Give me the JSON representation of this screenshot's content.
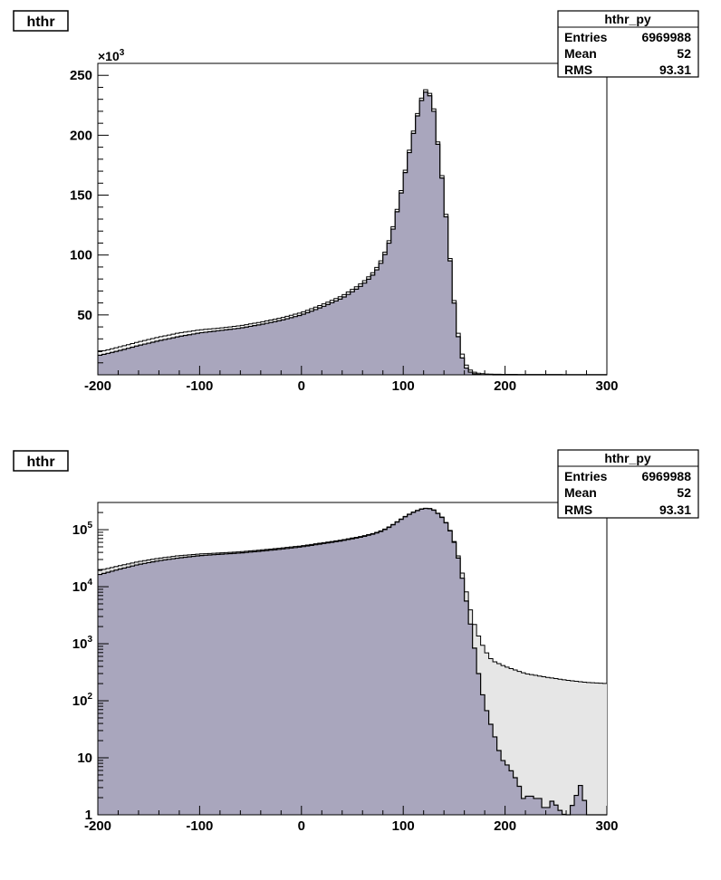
{
  "colors": {
    "main_fill": "#a9a6bd",
    "overlay_fill": "#e6e6e6",
    "line": "#000000",
    "background": "#ffffff"
  },
  "chart_data": [
    {
      "type": "histogram",
      "title": "hthr",
      "x_range": [
        -200,
        300
      ],
      "x_ticks": [
        "-200",
        "-100",
        "0",
        "100",
        "200",
        "300"
      ],
      "y_scale": "linear",
      "y_range": [
        0,
        260000
      ],
      "y_multiplier_label": "×10",
      "y_multiplier_exp": "3",
      "y_ticks": [
        "50",
        "100",
        "150",
        "200",
        "250"
      ],
      "stats": {
        "name": "hthr_py",
        "rows": [
          {
            "label": "Entries",
            "value": "6969988"
          },
          {
            "label": "Mean",
            "value": "52"
          },
          {
            "label": "RMS",
            "value": "93.31"
          }
        ]
      }
    },
    {
      "type": "histogram",
      "title": "hthr",
      "x_range": [
        -200,
        300
      ],
      "x_ticks": [
        "-200",
        "-100",
        "0",
        "100",
        "200",
        "300"
      ],
      "y_scale": "log",
      "y_range": [
        1,
        300000
      ],
      "y_ticks": [
        {
          "base": "1",
          "exp": ""
        },
        {
          "base": "10",
          "exp": ""
        },
        {
          "base": "10",
          "exp": "2"
        },
        {
          "base": "10",
          "exp": "3"
        },
        {
          "base": "10",
          "exp": "4"
        },
        {
          "base": "10",
          "exp": "5"
        }
      ],
      "stats": {
        "name": "hthr_py",
        "rows": [
          {
            "label": "Entries",
            "value": "6969988"
          },
          {
            "label": "Mean",
            "value": "52"
          },
          {
            "label": "RMS",
            "value": "93.31"
          }
        ]
      }
    }
  ],
  "histogram": {
    "bin_width": 4,
    "x_start": -200,
    "outer": [
      [
        -200,
        19000
      ],
      [
        -180,
        23000
      ],
      [
        -160,
        27500
      ],
      [
        -140,
        31500
      ],
      [
        -120,
        35000
      ],
      [
        -100,
        37500
      ],
      [
        -80,
        39000
      ],
      [
        -60,
        41000
      ],
      [
        -40,
        44000
      ],
      [
        -20,
        47500
      ],
      [
        0,
        52000
      ],
      [
        20,
        58500
      ],
      [
        40,
        66000
      ],
      [
        60,
        77000
      ],
      [
        72,
        87000
      ],
      [
        80,
        98000
      ],
      [
        88,
        117000
      ],
      [
        96,
        146000
      ],
      [
        104,
        180000
      ],
      [
        112,
        212000
      ],
      [
        118,
        231000
      ],
      [
        122,
        238000
      ],
      [
        126,
        235000
      ],
      [
        130,
        222000
      ],
      [
        136,
        182000
      ],
      [
        140,
        152000
      ],
      [
        144,
        118000
      ],
      [
        148,
        80000
      ],
      [
        152,
        48000
      ],
      [
        156,
        25000
      ],
      [
        160,
        12000
      ],
      [
        164,
        5500
      ],
      [
        168,
        2800
      ],
      [
        172,
        1700
      ],
      [
        176,
        1100
      ],
      [
        180,
        800
      ],
      [
        184,
        600
      ],
      [
        188,
        500
      ],
      [
        200,
        400
      ],
      [
        220,
        300
      ],
      [
        240,
        260
      ],
      [
        260,
        230
      ],
      [
        280,
        210
      ],
      [
        300,
        200
      ]
    ],
    "inner": [
      [
        -200,
        16000
      ],
      [
        -180,
        20000
      ],
      [
        -160,
        24500
      ],
      [
        -140,
        28500
      ],
      [
        -120,
        32000
      ],
      [
        -100,
        35000
      ],
      [
        -80,
        37000
      ],
      [
        -60,
        39000
      ],
      [
        -40,
        42000
      ],
      [
        -20,
        45500
      ],
      [
        0,
        50000
      ],
      [
        20,
        56500
      ],
      [
        40,
        64000
      ],
      [
        60,
        75000
      ],
      [
        72,
        85000
      ],
      [
        80,
        96000
      ],
      [
        88,
        115000
      ],
      [
        96,
        144000
      ],
      [
        104,
        178000
      ],
      [
        112,
        210000
      ],
      [
        118,
        229000
      ],
      [
        122,
        236000
      ],
      [
        126,
        233000
      ],
      [
        130,
        220000
      ],
      [
        136,
        180000
      ],
      [
        140,
        150000
      ],
      [
        144,
        116000
      ],
      [
        148,
        78000
      ],
      [
        152,
        46000
      ],
      [
        156,
        22000
      ],
      [
        160,
        9000
      ],
      [
        164,
        3500
      ],
      [
        168,
        1400
      ],
      [
        172,
        500
      ],
      [
        176,
        180
      ],
      [
        180,
        90
      ],
      [
        184,
        50
      ],
      [
        188,
        30
      ],
      [
        192,
        18
      ],
      [
        196,
        10
      ],
      [
        200,
        8
      ],
      [
        204,
        7
      ],
      [
        208,
        5
      ],
      [
        212,
        4
      ],
      [
        216,
        2.5
      ],
      [
        220,
        1.5
      ],
      [
        224,
        3
      ],
      [
        228,
        1.5
      ],
      [
        232,
        2.5
      ],
      [
        236,
        1.5
      ],
      [
        240,
        1.2
      ],
      [
        244,
        1.5
      ],
      [
        248,
        2
      ],
      [
        252,
        1.1
      ],
      [
        256,
        1.3
      ],
      [
        260,
        0.8
      ],
      [
        276,
        4
      ],
      [
        280,
        0.8
      ],
      [
        300,
        0.8
      ]
    ]
  }
}
